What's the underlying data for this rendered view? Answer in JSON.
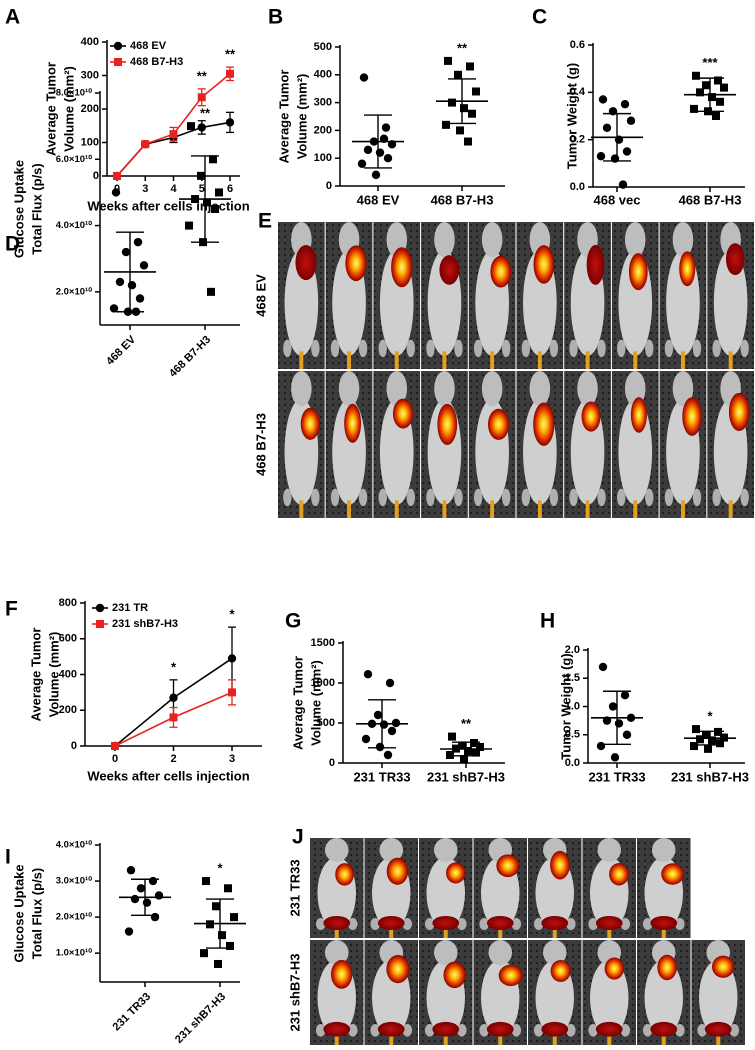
{
  "chart_data": [
    {
      "panel": "A",
      "type": "line",
      "y_label": [
        "Average Tumor",
        "Volume (mm²)"
      ],
      "x_label": "Weeks after cells injection",
      "categories": [
        "0",
        "3",
        "4",
        "5",
        "6"
      ],
      "series": [
        {
          "name": "468 EV",
          "color": "#000000",
          "marker": "circle",
          "values": [
            0,
            95,
            115,
            145,
            160
          ],
          "errors": [
            0,
            5,
            15,
            20,
            30
          ]
        },
        {
          "name": "468 B7-H3",
          "color": "#e8231f",
          "marker": "square",
          "values": [
            0,
            95,
            125,
            235,
            305
          ],
          "errors": [
            0,
            5,
            20,
            25,
            20
          ]
        }
      ],
      "ylim": [
        0,
        400
      ],
      "yticks": [
        0,
        100,
        200,
        300,
        400
      ],
      "annotations": [
        {
          "text": "**",
          "category": "5"
        },
        {
          "text": "**",
          "category": "6"
        }
      ]
    },
    {
      "panel": "B",
      "type": "dotplot",
      "y_label": [
        "Average Tumor",
        "Volume (mm²)"
      ],
      "categories": [
        "468 EV",
        "468 B7-H3"
      ],
      "markers": [
        "circle",
        "square"
      ],
      "groups": [
        {
          "values": [
            390,
            210,
            160,
            150,
            130,
            120,
            100,
            80,
            40,
            170
          ],
          "mean": 160,
          "sd": 95
        },
        {
          "values": [
            450,
            430,
            400,
            340,
            300,
            280,
            260,
            220,
            200,
            160
          ],
          "mean": 305,
          "sd": 80
        }
      ],
      "ylim": [
        0,
        500
      ],
      "yticks": [
        0,
        100,
        200,
        300,
        400,
        500
      ],
      "annotations": [
        {
          "text": "**",
          "category": "468 B7-H3"
        }
      ]
    },
    {
      "panel": "C",
      "type": "dotplot",
      "y_label": [
        "Tumor Weight (g)"
      ],
      "categories": [
        "468 vec",
        "468 B7-H3"
      ],
      "markers": [
        "circle",
        "square"
      ],
      "groups": [
        {
          "values": [
            0.37,
            0.35,
            0.32,
            0.28,
            0.25,
            0.2,
            0.15,
            0.13,
            0.12,
            0.01
          ],
          "mean": 0.21,
          "sd": 0.1
        },
        {
          "values": [
            0.47,
            0.45,
            0.43,
            0.42,
            0.4,
            0.38,
            0.36,
            0.33,
            0.32,
            0.3
          ],
          "mean": 0.39,
          "sd": 0.07
        }
      ],
      "ylim": [
        0,
        0.6
      ],
      "yticks": [
        {
          "value": 0,
          "label": "0.0"
        },
        0.2,
        0.4,
        0.6
      ],
      "annotations": [
        {
          "text": "***",
          "category": "468 B7-H3"
        }
      ]
    },
    {
      "panel": "D",
      "type": "dotplot",
      "y_label": [
        "Glucose Uptake",
        "Total Flux (p/s)"
      ],
      "categories": [
        "468 EV",
        "468 B7-H3"
      ],
      "markers": [
        "circle",
        "square"
      ],
      "groups": [
        {
          "values": [
            50000000000.0,
            35000000000.0,
            32000000000.0,
            28000000000.0,
            23000000000.0,
            22000000000.0,
            18000000000.0,
            15000000000.0,
            14000000000.0,
            14000000000.0
          ],
          "mean": 26000000000.0,
          "sd": 12000000000.0
        },
        {
          "values": [
            70000000000.0,
            60000000000.0,
            55000000000.0,
            50000000000.0,
            48000000000.0,
            47000000000.0,
            45000000000.0,
            40000000000.0,
            35000000000.0,
            20000000000.0
          ],
          "mean": 48000000000.0,
          "sd": 13000000000.0
        }
      ],
      "ylim": [
        10000000000.0,
        80000000000.0
      ],
      "yticks": [
        {
          "value": 20000000000.0,
          "label": "2.0×10¹⁰"
        },
        {
          "value": 40000000000.0,
          "label": "4.0×10¹⁰"
        },
        {
          "value": 60000000000.0,
          "label": "6.0×10¹⁰"
        },
        {
          "value": 80000000000.0,
          "label": "8.0×10¹⁰"
        }
      ],
      "annotations": [
        {
          "text": "**",
          "category": "468 B7-H3"
        }
      ]
    },
    {
      "panel": "F",
      "type": "line",
      "y_label": [
        "Average Tumor",
        "Volume (mm²)"
      ],
      "x_label": "Weeks after cells injection",
      "categories": [
        "0",
        "2",
        "3"
      ],
      "series": [
        {
          "name": "231 TR",
          "color": "#000000",
          "marker": "circle",
          "values": [
            0,
            270,
            490
          ],
          "errors": [
            0,
            100,
            175
          ]
        },
        {
          "name": "231 shB7-H3",
          "color": "#e8231f",
          "marker": "square",
          "values": [
            0,
            160,
            300
          ],
          "errors": [
            0,
            55,
            70
          ]
        }
      ],
      "ylim": [
        0,
        800
      ],
      "yticks": [
        0,
        200,
        400,
        600,
        800
      ],
      "annotations": [
        {
          "text": "*",
          "category": "2"
        },
        {
          "text": "*",
          "category": "3"
        }
      ]
    },
    {
      "panel": "G",
      "type": "dotplot",
      "y_label": [
        "Average Tumor",
        "Volume (mm²)"
      ],
      "categories": [
        "231 TR33",
        "231 shB7-H3"
      ],
      "markers": [
        "circle",
        "square"
      ],
      "groups": [
        {
          "values": [
            1110,
            1000,
            600,
            500,
            490,
            480,
            400,
            300,
            200,
            100
          ],
          "mean": 490,
          "sd": 300
        },
        {
          "values": [
            330,
            250,
            220,
            200,
            180,
            150,
            130,
            100,
            50
          ],
          "mean": 175,
          "sd": 85
        }
      ],
      "ylim": [
        0,
        1500
      ],
      "yticks": [
        0,
        500,
        1000,
        1500
      ],
      "annotations": [
        {
          "text": "**",
          "category": "231 shB7-H3"
        }
      ]
    },
    {
      "panel": "H",
      "type": "dotplot",
      "y_label": [
        "Tumor Weight (g)"
      ],
      "categories": [
        "231 TR33",
        "231 shB7-H3"
      ],
      "markers": [
        "circle",
        "square"
      ],
      "groups": [
        {
          "values": [
            1.7,
            1.2,
            1.0,
            0.8,
            0.75,
            0.7,
            0.5,
            0.3,
            0.1
          ],
          "mean": 0.8,
          "sd": 0.47
        },
        {
          "values": [
            0.6,
            0.55,
            0.5,
            0.45,
            0.42,
            0.4,
            0.35,
            0.3,
            0.25
          ],
          "mean": 0.44,
          "sd": 0.12
        }
      ],
      "ylim": [
        0,
        2
      ],
      "yticks": [
        {
          "value": 0,
          "label": "0.0"
        },
        0.5,
        {
          "value": 1,
          "label": "1.0"
        },
        1.5,
        {
          "value": 2,
          "label": "2.0"
        }
      ],
      "annotations": [
        {
          "text": "*",
          "category": "231 shB7-H3"
        }
      ]
    },
    {
      "panel": "I",
      "type": "dotplot",
      "y_label": [
        "Glucose Uptake",
        "Total Flux (p/s)"
      ],
      "categories": [
        "231 TR33",
        "231 shB7-H3"
      ],
      "markers": [
        "circle",
        "square"
      ],
      "groups": [
        {
          "values": [
            33000000000.0,
            30000000000.0,
            28000000000.0,
            26000000000.0,
            25000000000.0,
            24000000000.0,
            20000000000.0,
            16000000000.0
          ],
          "mean": 25500000000.0,
          "sd": 5000000000.0
        },
        {
          "values": [
            30000000000.0,
            28000000000.0,
            23000000000.0,
            20000000000.0,
            18000000000.0,
            15000000000.0,
            12000000000.0,
            10000000000.0,
            7000000000.0
          ],
          "mean": 18200000000.0,
          "sd": 6800000000.0
        }
      ],
      "ylim": [
        2000000000.0,
        40000000000.0
      ],
      "yticks": [
        {
          "value": 10000000000.0,
          "label": "1.0×10¹⁰"
        },
        {
          "value": 20000000000.0,
          "label": "2.0×10¹⁰"
        },
        {
          "value": 30000000000.0,
          "label": "3.0×10¹⁰"
        },
        {
          "value": 40000000000.0,
          "label": "4.0×10¹⁰"
        }
      ],
      "annotations": [
        {
          "text": "*",
          "category": "231 shB7-H3"
        }
      ]
    }
  ],
  "images": [
    {
      "panel": "E",
      "rows": [
        "468 EV",
        "468 B7-H3"
      ]
    },
    {
      "panel": "J",
      "rows": [
        "231 TR33",
        "231 shB7-H3"
      ]
    }
  ]
}
